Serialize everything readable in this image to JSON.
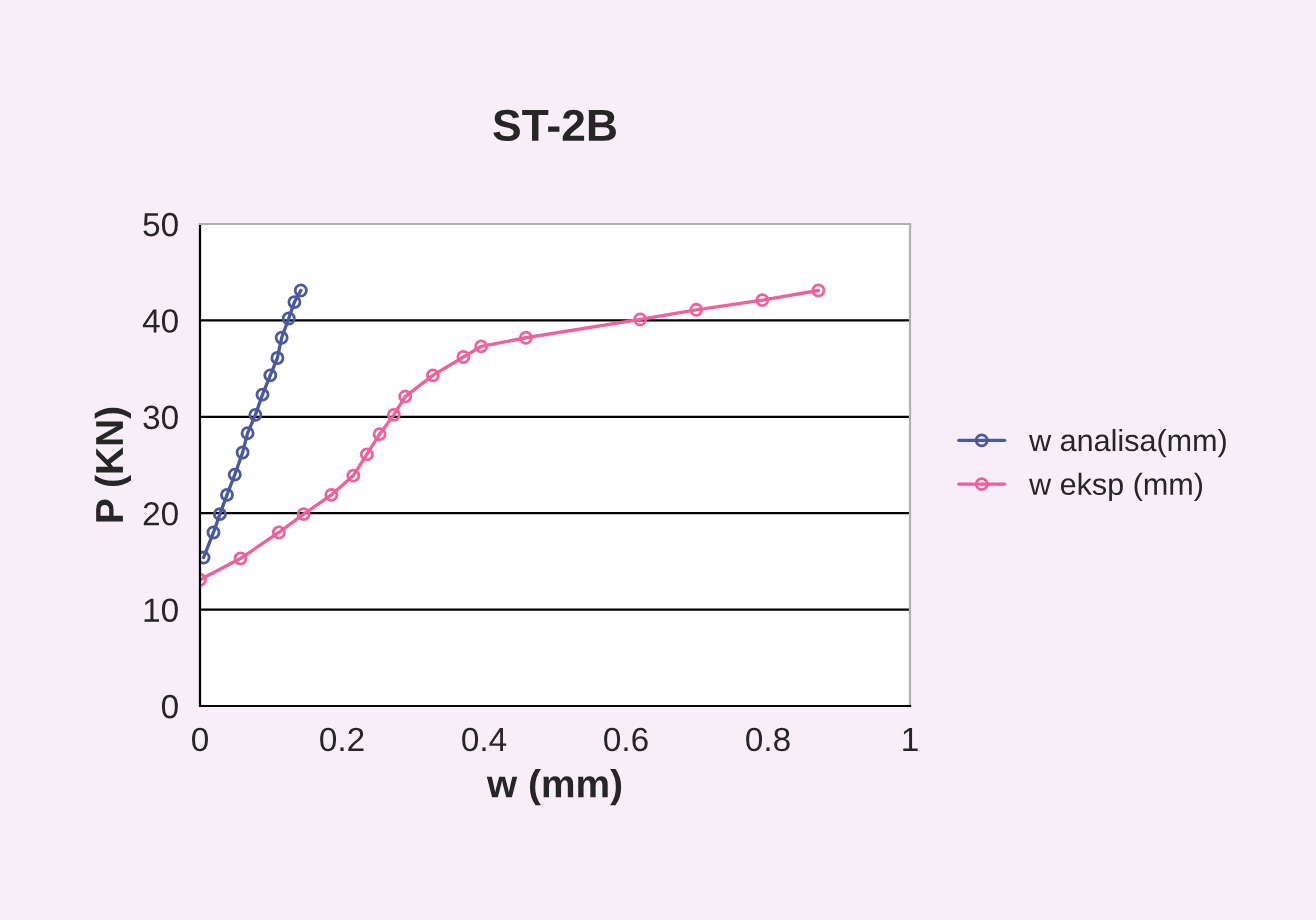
{
  "chart_data": {
    "type": "line",
    "title": "ST-2B",
    "xlabel": "w (mm)",
    "ylabel": "P (KN)",
    "xlim": [
      0,
      1
    ],
    "xticks": [
      0,
      0.2,
      0.4,
      0.6,
      0.8,
      1
    ],
    "ylim": [
      0,
      50
    ],
    "yticks": [
      0,
      10,
      20,
      30,
      40,
      50
    ],
    "grid": "y",
    "legend": "right",
    "marker": "circle",
    "line_style": "solid",
    "series": [
      {
        "name": "w analisa(mm)",
        "color": "#4a5a9c",
        "x": [
          0.005,
          0.019,
          0.028,
          0.038,
          0.049,
          0.06,
          0.067,
          0.078,
          0.088,
          0.099,
          0.109,
          0.115,
          0.125,
          0.133,
          0.142
        ],
        "values": [
          15.4,
          18.0,
          19.9,
          21.9,
          24.0,
          26.3,
          28.3,
          30.2,
          32.3,
          34.3,
          36.1,
          38.2,
          40.2,
          41.9,
          43.1
        ]
      },
      {
        "name": "w eksp (mm)",
        "color": "#f0609a",
        "x": [
          0,
          0.057,
          0.111,
          0.146,
          0.185,
          0.216,
          0.235,
          0.253,
          0.273,
          0.289,
          0.328,
          0.371,
          0.396,
          0.459,
          0.62,
          0.699,
          0.792,
          0.871
        ],
        "values": [
          13.1,
          15.3,
          18.0,
          19.9,
          21.9,
          23.9,
          26.1,
          28.2,
          30.2,
          32.1,
          34.3,
          36.2,
          37.3,
          38.2,
          40.1,
          41.1,
          42.1,
          43.1
        ]
      }
    ]
  }
}
